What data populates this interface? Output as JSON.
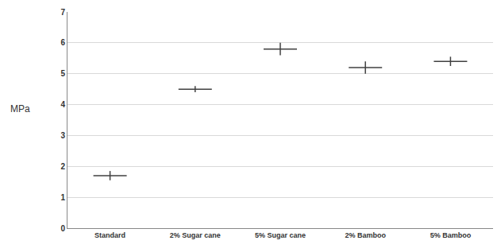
{
  "chart_data": {
    "type": "scatter",
    "ylabel": "MPa",
    "categories": [
      "Standard",
      "2% Sugar cane",
      "5% Sugar cane",
      "2% Bamboo",
      "5% Bamboo"
    ],
    "values": [
      1.7,
      4.5,
      5.8,
      5.2,
      5.4
    ],
    "errors": [
      0.15,
      0.1,
      0.2,
      0.2,
      0.15
    ],
    "color": "#404040",
    "marker": "line-ew",
    "ylim": [
      0,
      7
    ],
    "yticks": [
      0,
      1,
      2,
      3,
      4,
      5,
      6,
      7
    ],
    "grid": true
  }
}
